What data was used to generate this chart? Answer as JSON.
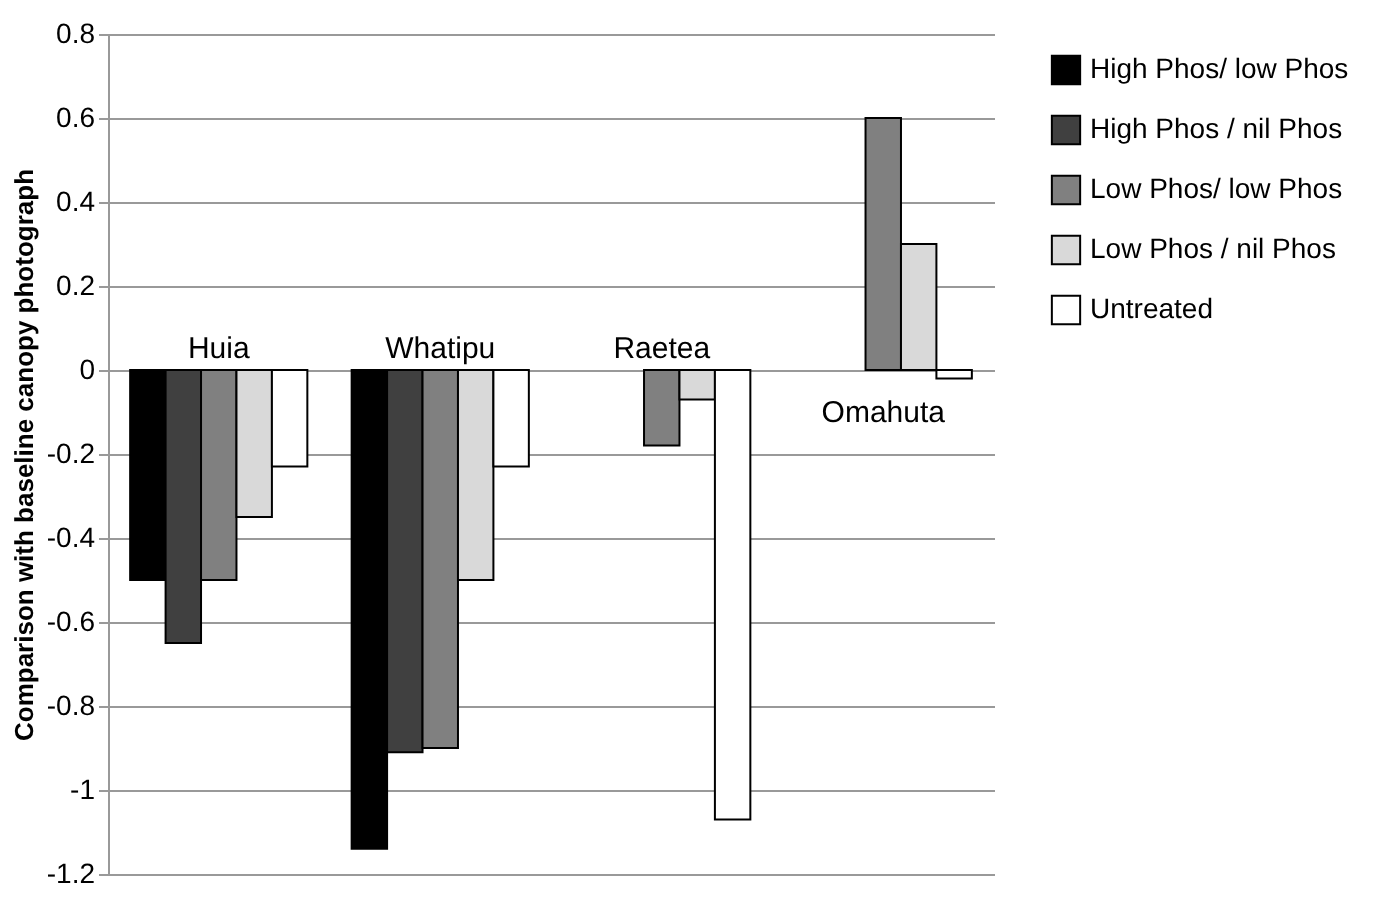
{
  "chart_data": {
    "type": "bar",
    "ylabel": "Comparison with baseline canopy photograph",
    "categories": [
      "Huia",
      "Whatipu",
      "Raetea",
      "Omahuta"
    ],
    "series": [
      {
        "name": "High Phos/ low Phos",
        "color": "#000000",
        "values": [
          -0.5,
          -1.14,
          null,
          null
        ]
      },
      {
        "name": "High Phos / nil Phos",
        "color": "#404040",
        "values": [
          -0.65,
          -0.91,
          null,
          null
        ]
      },
      {
        "name": "Low Phos/ low Phos",
        "color": "#808080",
        "values": [
          -0.5,
          -0.9,
          -0.18,
          0.6
        ]
      },
      {
        "name": "Low Phos / nil Phos",
        "color": "#d9d9d9",
        "values": [
          -0.35,
          -0.5,
          -0.07,
          0.3
        ]
      },
      {
        "name": "Untreated",
        "color": "#ffffff",
        "values": [
          -0.23,
          -0.23,
          -1.07,
          -0.02
        ]
      }
    ],
    "ylim": [
      -1.2,
      0.8
    ],
    "yticks": [
      -1.2,
      -1,
      -0.8,
      -0.6,
      -0.4,
      -0.2,
      0,
      0.2,
      0.4,
      0.6,
      0.8
    ],
    "grid": "y",
    "legend": "right",
    "tick_labels": "y"
  }
}
